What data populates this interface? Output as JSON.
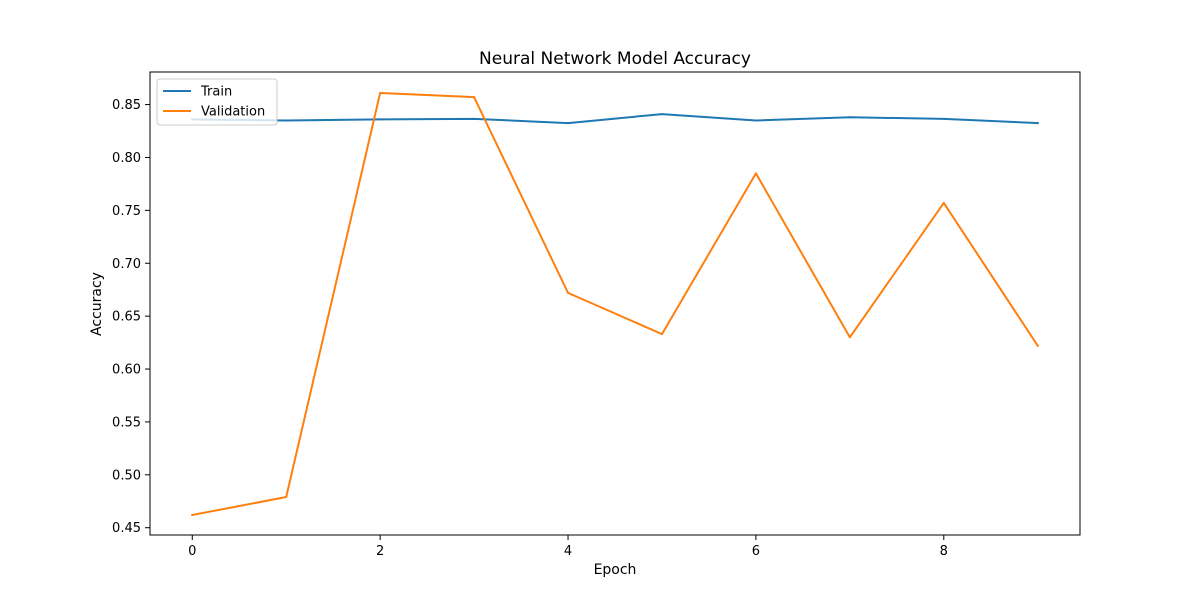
{
  "chart_data": {
    "type": "line",
    "title": "Neural Network Model Accuracy",
    "xlabel": "Epoch",
    "ylabel": "Accuracy",
    "x": [
      0,
      1,
      2,
      3,
      4,
      5,
      6,
      7,
      8,
      9
    ],
    "xlim": [
      -0.45,
      9.45
    ],
    "ylim": [
      0.4431,
      0.8808
    ],
    "xticks": [
      0,
      2,
      4,
      6,
      8
    ],
    "yticks": [
      0.45,
      0.5,
      0.55,
      0.6,
      0.65,
      0.7,
      0.75,
      0.8,
      0.85
    ],
    "xtick_labels": [
      "0",
      "2",
      "4",
      "6",
      "8"
    ],
    "ytick_labels": [
      "0.45",
      "0.50",
      "0.55",
      "0.60",
      "0.65",
      "0.70",
      "0.75",
      "0.80",
      "0.85"
    ],
    "grid": false,
    "legend_position": "upper-left",
    "series": [
      {
        "name": "Train",
        "color": "#1f77b4",
        "values": [
          0.836,
          0.835,
          0.836,
          0.8365,
          0.8325,
          0.841,
          0.835,
          0.838,
          0.8365,
          0.8325
        ]
      },
      {
        "name": "Validation",
        "color": "#ff7f0e",
        "values": [
          0.462,
          0.479,
          0.861,
          0.857,
          0.672,
          0.633,
          0.785,
          0.63,
          0.757,
          0.622
        ]
      }
    ]
  }
}
